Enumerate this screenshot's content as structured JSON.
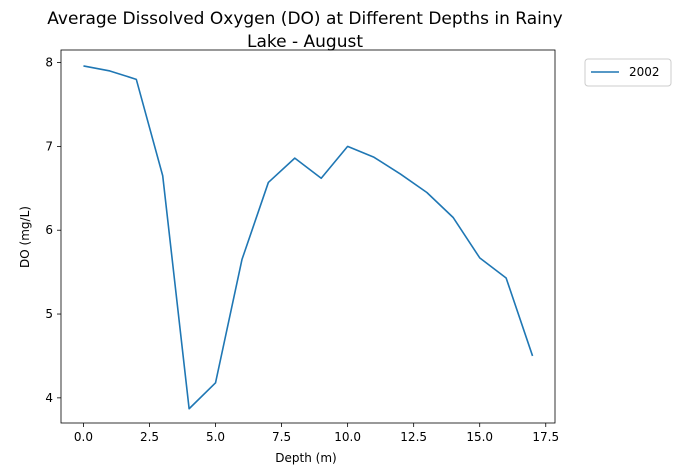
{
  "chart_data": {
    "type": "line",
    "title_line1": "Average Dissolved Oxygen (DO) at Different Depths in Rainy",
    "title_line2": "Lake - August",
    "xlabel": "Depth (m)",
    "ylabel": "DO (mg/L)",
    "xlim": [
      -0.85,
      17.85
    ],
    "ylim": [
      3.7,
      8.15
    ],
    "xticks": [
      0,
      2.5,
      5,
      7.5,
      10,
      12.5,
      15,
      17.5
    ],
    "xtick_labels": [
      "0.0",
      "2.5",
      "5.0",
      "7.5",
      "10.0",
      "12.5",
      "15.0",
      "17.5"
    ],
    "yticks": [
      4,
      5,
      6,
      7,
      8
    ],
    "ytick_labels": [
      "4",
      "5",
      "6",
      "7",
      "8"
    ],
    "grid": false,
    "legend_position": "outside-top-right",
    "series": [
      {
        "name": "2002",
        "color": "#1f77b4",
        "x": [
          0,
          1,
          2,
          3,
          4,
          5,
          6,
          7,
          8,
          9,
          10,
          11,
          12,
          13,
          14,
          15,
          16,
          17
        ],
        "y": [
          7.96,
          7.9,
          7.8,
          6.65,
          3.87,
          4.18,
          5.65,
          6.57,
          6.86,
          6.62,
          7.0,
          6.87,
          6.67,
          6.45,
          6.15,
          5.67,
          5.43,
          4.5
        ]
      }
    ]
  }
}
